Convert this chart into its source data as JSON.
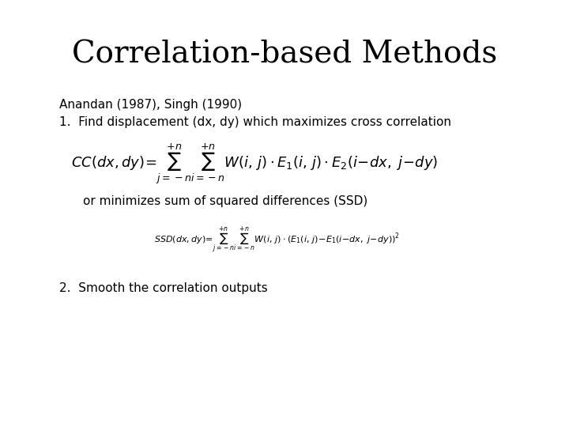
{
  "title": "Correlation-based Methods",
  "title_fontsize": 28,
  "title_font": "serif",
  "background_color": "#ffffff",
  "text_color": "#000000",
  "authors_line": "Anandan (1987), Singh (1990)",
  "authors_fontsize": 11,
  "authors_font": "sans-serif",
  "item1_text": "1.  Find displacement (dx, dy) which maximizes cross correlation",
  "item1_fontsize": 11,
  "item1_font": "sans-serif",
  "formula_cc_fontsize": 13,
  "or_text": "or minimizes sum of squared differences (SSD)",
  "or_fontsize": 11,
  "or_font": "sans-serif",
  "formula_ssd_fontsize": 8,
  "item2_text": "2.  Smooth the correlation outputs",
  "item2_fontsize": 11,
  "item2_font": "sans-serif"
}
